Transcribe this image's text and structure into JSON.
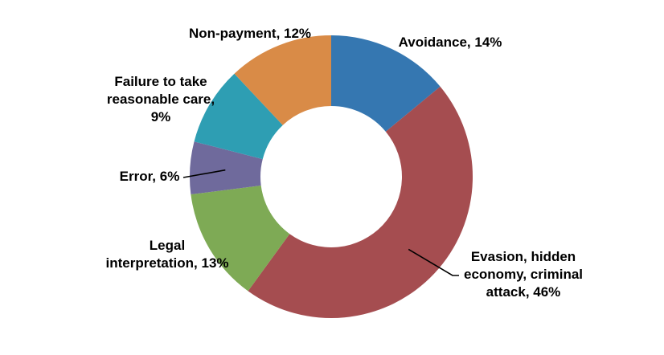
{
  "chart_data": {
    "type": "pie",
    "subtype": "donut",
    "title": "",
    "legend": "none",
    "hole_ratio": 0.5,
    "start_angle_deg": 0,
    "direction": "clockwise",
    "data_labels": "category name and percent, outside",
    "background_color": "#ffffff",
    "label_color": "#000000",
    "slices": [
      {
        "id": "avoidance",
        "label": "Avoidance",
        "value": 14,
        "color": "#3577B1",
        "display": "Avoidance, 14%"
      },
      {
        "id": "evasion",
        "label": "Evasion, hidden economy, criminal attack",
        "value": 46,
        "color": "#A54D50",
        "display": "Evasion, hidden\neconomy, criminal\nattack, 46%"
      },
      {
        "id": "legal-interpretation",
        "label": "Legal interpretation",
        "value": 13,
        "color": "#7EAA55",
        "display": "Legal\ninterpretation, 13%"
      },
      {
        "id": "error",
        "label": "Error",
        "value": 6,
        "color": "#6F6A9C",
        "display": "Error, 6%"
      },
      {
        "id": "failure-reasonable-care",
        "label": "Failure to take reasonable care",
        "value": 9,
        "color": "#2E9EB3",
        "display": "Failure to take\nreasonable care,\n9%"
      },
      {
        "id": "non-payment",
        "label": "Non-payment",
        "value": 12,
        "color": "#D98B47",
        "display": "Non-payment, 12%"
      }
    ]
  }
}
